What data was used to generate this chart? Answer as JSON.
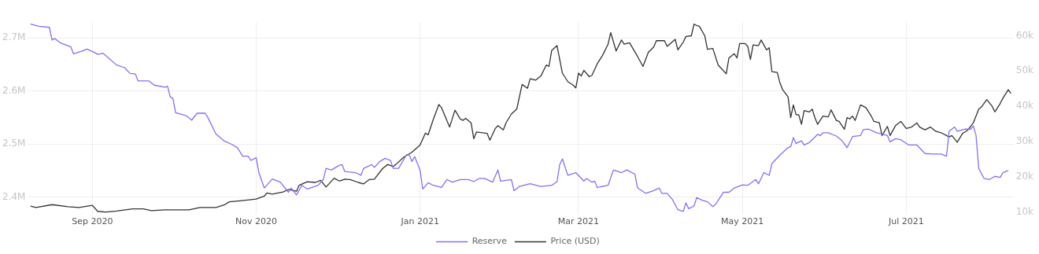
{
  "chart_data": {
    "type": "line",
    "xlim": [
      "2020-08-08",
      "2021-08-10"
    ],
    "xticks": [
      {
        "value": "2020-09-01",
        "label": "Sep 2020"
      },
      {
        "value": "2020-11-01",
        "label": "Nov 2020"
      },
      {
        "value": "2021-01-01",
        "label": "Jan 2021"
      },
      {
        "value": "2021-03-01",
        "label": "Mar 2021"
      },
      {
        "value": "2021-05-01",
        "label": "May 2021"
      },
      {
        "value": "2021-07-01",
        "label": "Jul 2021"
      }
    ],
    "ylim": [
      2367000,
      2730000
    ],
    "yticks": [
      {
        "value": 2400000,
        "label": "2.4M"
      },
      {
        "value": 2500000,
        "label": "2.5M"
      },
      {
        "value": 2600000,
        "label": "2.6M"
      },
      {
        "value": 2700000,
        "label": "2.7M"
      }
    ],
    "y2lim": [
      9300,
      63900
    ],
    "y2ticks": [
      {
        "value": 10000,
        "label": "10k"
      },
      {
        "value": 20000,
        "label": "20k"
      },
      {
        "value": 30000,
        "label": "30k"
      },
      {
        "value": 40000,
        "label": "40k"
      },
      {
        "value": 50000,
        "label": "50k"
      },
      {
        "value": 60000,
        "label": "60k"
      }
    ],
    "grid": true,
    "legend": "bottom",
    "marker": "none",
    "line_style": "solid",
    "series": [
      {
        "name": "Reserve",
        "color": "#7f73f0",
        "x": [
          "2020-08-09",
          "2020-08-12",
          "2020-08-16",
          "2020-08-17",
          "2020-08-18",
          "2020-08-20",
          "2020-08-24",
          "2020-08-25",
          "2020-08-28",
          "2020-08-30",
          "2020-09-02",
          "2020-09-03",
          "2020-09-05",
          "2020-09-10",
          "2020-09-13",
          "2020-09-15",
          "2020-09-17",
          "2020-09-18",
          "2020-09-22",
          "2020-09-24",
          "2020-09-28",
          "2020-09-29",
          "2020-09-30",
          "2020-10-01",
          "2020-10-02",
          "2020-10-05",
          "2020-10-06",
          "2020-10-08",
          "2020-10-10",
          "2020-10-13",
          "2020-10-14",
          "2020-10-17",
          "2020-10-20",
          "2020-10-23",
          "2020-10-25",
          "2020-10-27",
          "2020-10-29",
          "2020-10-30",
          "2020-11-01",
          "2020-11-02",
          "2020-11-04",
          "2020-11-07",
          "2020-11-10",
          "2020-11-13",
          "2020-11-14",
          "2020-11-16",
          "2020-11-18",
          "2020-11-20",
          "2020-11-24",
          "2020-11-26",
          "2020-11-27",
          "2020-11-29",
          "2020-12-02",
          "2020-12-03",
          "2020-12-04",
          "2020-12-08",
          "2020-12-10",
          "2020-12-11",
          "2020-12-14",
          "2020-12-15",
          "2020-12-17",
          "2020-12-19",
          "2020-12-21",
          "2020-12-22",
          "2020-12-24",
          "2020-12-27",
          "2020-12-28",
          "2020-12-29",
          "2020-12-30",
          "2021-01-01",
          "2021-01-02",
          "2021-01-04",
          "2021-01-06",
          "2021-01-09",
          "2021-01-11",
          "2021-01-13",
          "2021-01-16",
          "2021-01-19",
          "2021-01-21",
          "2021-01-23",
          "2021-01-25",
          "2021-01-28",
          "2021-01-30",
          "2021-01-31",
          "2021-02-04",
          "2021-02-05",
          "2021-02-07",
          "2021-02-11",
          "2021-02-15",
          "2021-02-19",
          "2021-02-21",
          "2021-02-22",
          "2021-02-23",
          "2021-02-25",
          "2021-02-28",
          "2021-03-03",
          "2021-03-04",
          "2021-03-06",
          "2021-03-07",
          "2021-03-08",
          "2021-03-12",
          "2021-03-14",
          "2021-03-17",
          "2021-03-19",
          "2021-03-22",
          "2021-03-23",
          "2021-03-26",
          "2021-03-29",
          "2021-03-31",
          "2021-04-01",
          "2021-04-03",
          "2021-04-05",
          "2021-04-07",
          "2021-04-09",
          "2021-04-10",
          "2021-04-11",
          "2021-04-13",
          "2021-04-14",
          "2021-04-16",
          "2021-04-18",
          "2021-04-20",
          "2021-04-21",
          "2021-04-24",
          "2021-04-26",
          "2021-04-28",
          "2021-05-01",
          "2021-05-03",
          "2021-05-06",
          "2021-05-07",
          "2021-05-09",
          "2021-05-11",
          "2021-05-12",
          "2021-05-15",
          "2021-05-18",
          "2021-05-19",
          "2021-05-20",
          "2021-05-21",
          "2021-05-23",
          "2021-05-24",
          "2021-05-26",
          "2021-05-29",
          "2021-05-30",
          "2021-05-31",
          "2021-06-02",
          "2021-06-05",
          "2021-06-07",
          "2021-06-09",
          "2021-06-11",
          "2021-06-14",
          "2021-06-15",
          "2021-06-17",
          "2021-06-20",
          "2021-06-22",
          "2021-06-24",
          "2021-06-25",
          "2021-06-27",
          "2021-06-29",
          "2021-07-02",
          "2021-07-05",
          "2021-07-08",
          "2021-07-11",
          "2021-07-14",
          "2021-07-16",
          "2021-07-17",
          "2021-07-19",
          "2021-07-20",
          "2021-07-23",
          "2021-07-25",
          "2021-07-26",
          "2021-07-27",
          "2021-07-28",
          "2021-07-30",
          "2021-08-01",
          "2021-08-03",
          "2021-08-05",
          "2021-08-06",
          "2021-08-08"
        ],
        "values": [
          2726000,
          2722000,
          2720000,
          2696000,
          2699000,
          2691000,
          2683000,
          2670000,
          2675000,
          2679000,
          2672000,
          2669000,
          2671000,
          2649000,
          2644000,
          2633000,
          2632000,
          2619000,
          2619000,
          2611000,
          2607000,
          2609000,
          2589000,
          2586000,
          2559000,
          2555000,
          2553000,
          2545000,
          2558000,
          2558000,
          2550000,
          2519000,
          2506000,
          2499000,
          2493000,
          2477000,
          2477000,
          2469000,
          2474000,
          2446000,
          2417000,
          2434000,
          2428000,
          2409000,
          2417000,
          2404000,
          2422000,
          2415000,
          2422000,
          2433000,
          2454000,
          2451000,
          2460000,
          2461000,
          2448000,
          2446000,
          2441000,
          2454000,
          2461000,
          2456000,
          2467000,
          2473000,
          2469000,
          2454000,
          2454000,
          2480000,
          2479000,
          2467000,
          2476000,
          2451000,
          2415000,
          2427000,
          2422000,
          2418000,
          2433000,
          2428000,
          2433000,
          2433000,
          2429000,
          2435000,
          2435000,
          2428000,
          2451000,
          2430000,
          2433000,
          2412000,
          2420000,
          2425000,
          2420000,
          2422000,
          2429000,
          2461000,
          2472000,
          2441000,
          2446000,
          2430000,
          2435000,
          2428000,
          2430000,
          2418000,
          2422000,
          2451000,
          2446000,
          2451000,
          2443000,
          2417000,
          2407000,
          2412000,
          2417000,
          2407000,
          2407000,
          2395000,
          2376000,
          2373000,
          2389000,
          2378000,
          2383000,
          2399000,
          2394000,
          2391000,
          2382000,
          2386000,
          2409000,
          2409000,
          2417000,
          2423000,
          2422000,
          2433000,
          2425000,
          2446000,
          2441000,
          2463000,
          2479000,
          2493000,
          2495000,
          2512000,
          2501000,
          2506000,
          2498000,
          2503000,
          2518000,
          2516000,
          2521000,
          2521000,
          2515000,
          2507000,
          2493000,
          2514000,
          2516000,
          2527000,
          2528000,
          2521000,
          2519000,
          2516000,
          2504000,
          2510000,
          2508000,
          2498000,
          2498000,
          2482000,
          2481000,
          2481000,
          2477000,
          2524000,
          2532000,
          2524000,
          2528000,
          2528000,
          2534000,
          2516000,
          2454000,
          2435000,
          2433000,
          2439000,
          2437000,
          2446000,
          2450000
        ]
      },
      {
        "name": "Price (USD)",
        "color": "#333333",
        "axis": "y2",
        "x": [
          "2020-08-09",
          "2020-08-11",
          "2020-08-17",
          "2020-08-23",
          "2020-08-27",
          "2020-09-01",
          "2020-09-03",
          "2020-09-06",
          "2020-09-10",
          "2020-09-16",
          "2020-09-20",
          "2020-09-23",
          "2020-09-28",
          "2020-10-07",
          "2020-10-11",
          "2020-10-17",
          "2020-10-20",
          "2020-10-22",
          "2020-10-26",
          "2020-11-01",
          "2020-11-04",
          "2020-11-05",
          "2020-11-07",
          "2020-11-11",
          "2020-11-13",
          "2020-11-16",
          "2020-11-17",
          "2020-11-20",
          "2020-11-23",
          "2020-11-25",
          "2020-11-27",
          "2020-11-30",
          "2020-12-02",
          "2020-12-04",
          "2020-12-06",
          "2020-12-09",
          "2020-12-11",
          "2020-12-13",
          "2020-12-15",
          "2020-12-18",
          "2020-12-20",
          "2020-12-22",
          "2020-12-23",
          "2020-12-26",
          "2020-12-29",
          "2021-01-01",
          "2021-01-03",
          "2021-01-04",
          "2021-01-06",
          "2021-01-08",
          "2021-01-09",
          "2021-01-12",
          "2021-01-14",
          "2021-01-16",
          "2021-01-17",
          "2021-01-18",
          "2021-01-20",
          "2021-01-21",
          "2021-01-22",
          "2021-01-26",
          "2021-01-27",
          "2021-01-29",
          "2021-01-30",
          "2021-02-01",
          "2021-02-02",
          "2021-02-04",
          "2021-02-06",
          "2021-02-08",
          "2021-02-10",
          "2021-02-11",
          "2021-02-13",
          "2021-02-15",
          "2021-02-17",
          "2021-02-18",
          "2021-02-19",
          "2021-02-21",
          "2021-02-23",
          "2021-02-25",
          "2021-02-27",
          "2021-02-28",
          "2021-03-01",
          "2021-03-02",
          "2021-03-03",
          "2021-03-05",
          "2021-03-06",
          "2021-03-08",
          "2021-03-10",
          "2021-03-12",
          "2021-03-13",
          "2021-03-15",
          "2021-03-17",
          "2021-03-18",
          "2021-03-20",
          "2021-03-23",
          "2021-03-25",
          "2021-03-27",
          "2021-03-29",
          "2021-03-30",
          "2021-04-02",
          "2021-04-03",
          "2021-04-06",
          "2021-04-07",
          "2021-04-09",
          "2021-04-10",
          "2021-04-12",
          "2021-04-13",
          "2021-04-14",
          "2021-04-15",
          "2021-04-17",
          "2021-04-18",
          "2021-04-20",
          "2021-04-22",
          "2021-04-25",
          "2021-04-26",
          "2021-04-28",
          "2021-04-29",
          "2021-04-30",
          "2021-05-02",
          "2021-05-03",
          "2021-05-04",
          "2021-05-05",
          "2021-05-07",
          "2021-05-08",
          "2021-05-10",
          "2021-05-11",
          "2021-05-12",
          "2021-05-14",
          "2021-05-15",
          "2021-05-16",
          "2021-05-18",
          "2021-05-19",
          "2021-05-20",
          "2021-05-21",
          "2021-05-22",
          "2021-05-23",
          "2021-05-24",
          "2021-05-26",
          "2021-05-27",
          "2021-05-28",
          "2021-05-29",
          "2021-05-31",
          "2021-06-02",
          "2021-06-03",
          "2021-06-05",
          "2021-06-06",
          "2021-06-08",
          "2021-06-09",
          "2021-06-10",
          "2021-06-11",
          "2021-06-12",
          "2021-06-14",
          "2021-06-16",
          "2021-06-18",
          "2021-06-19",
          "2021-06-21",
          "2021-06-22",
          "2021-06-24",
          "2021-06-25",
          "2021-06-27",
          "2021-06-29",
          "2021-07-01",
          "2021-07-03",
          "2021-07-05",
          "2021-07-06",
          "2021-07-08",
          "2021-07-10",
          "2021-07-12",
          "2021-07-14",
          "2021-07-17",
          "2021-07-18",
          "2021-07-20",
          "2021-07-22",
          "2021-07-24",
          "2021-07-26",
          "2021-07-28",
          "2021-07-29",
          "2021-07-31",
          "2021-08-02",
          "2021-08-03",
          "2021-08-05",
          "2021-08-06",
          "2021-08-08",
          "2021-08-09"
        ],
        "values": [
          11700,
          11300,
          12100,
          11500,
          11300,
          11900,
          10200,
          10000,
          10300,
          10900,
          10900,
          10400,
          10600,
          10600,
          11300,
          11300,
          12000,
          12900,
          13200,
          13700,
          14500,
          15400,
          15100,
          15700,
          16400,
          15900,
          17600,
          18600,
          18400,
          19000,
          17100,
          19600,
          18800,
          19300,
          19200,
          18400,
          18000,
          19200,
          19300,
          22300,
          23500,
          22900,
          23500,
          25600,
          27000,
          29000,
          32400,
          31900,
          36400,
          40500,
          39600,
          34100,
          38900,
          36400,
          36000,
          36600,
          35300,
          30800,
          32700,
          32300,
          30400,
          33700,
          34500,
          33300,
          35300,
          37800,
          39200,
          46200,
          45100,
          47800,
          47400,
          48600,
          51700,
          51300,
          55800,
          57200,
          49400,
          47000,
          46000,
          45200,
          49400,
          48600,
          50200,
          48400,
          48800,
          52100,
          54500,
          57600,
          60900,
          55700,
          58800,
          57600,
          58000,
          54100,
          51300,
          55300,
          56800,
          58600,
          58600,
          57000,
          59000,
          56000,
          58200,
          59800,
          60000,
          63300,
          62900,
          62700,
          60000,
          56200,
          56400,
          51700,
          49200,
          53700,
          54900,
          53700,
          57800,
          57800,
          57000,
          53300,
          57400,
          57200,
          58800,
          56000,
          56600,
          49800,
          49600,
          46600,
          44700,
          42700,
          36800,
          40400,
          37600,
          37600,
          34900,
          38800,
          38400,
          39200,
          36800,
          34900,
          37200,
          37000,
          39000,
          36000,
          35700,
          33500,
          36800,
          36400,
          37200,
          36000,
          40400,
          39600,
          37200,
          35700,
          35300,
          31700,
          34300,
          31700,
          34500,
          35700,
          33700,
          34100,
          35300,
          34100,
          33300,
          34100,
          32900,
          32500,
          31300,
          31700,
          29800,
          32300,
          33300,
          35300,
          39200,
          39800,
          41900,
          40000,
          38400,
          40800,
          42300,
          44700,
          43700
        ]
      }
    ]
  }
}
